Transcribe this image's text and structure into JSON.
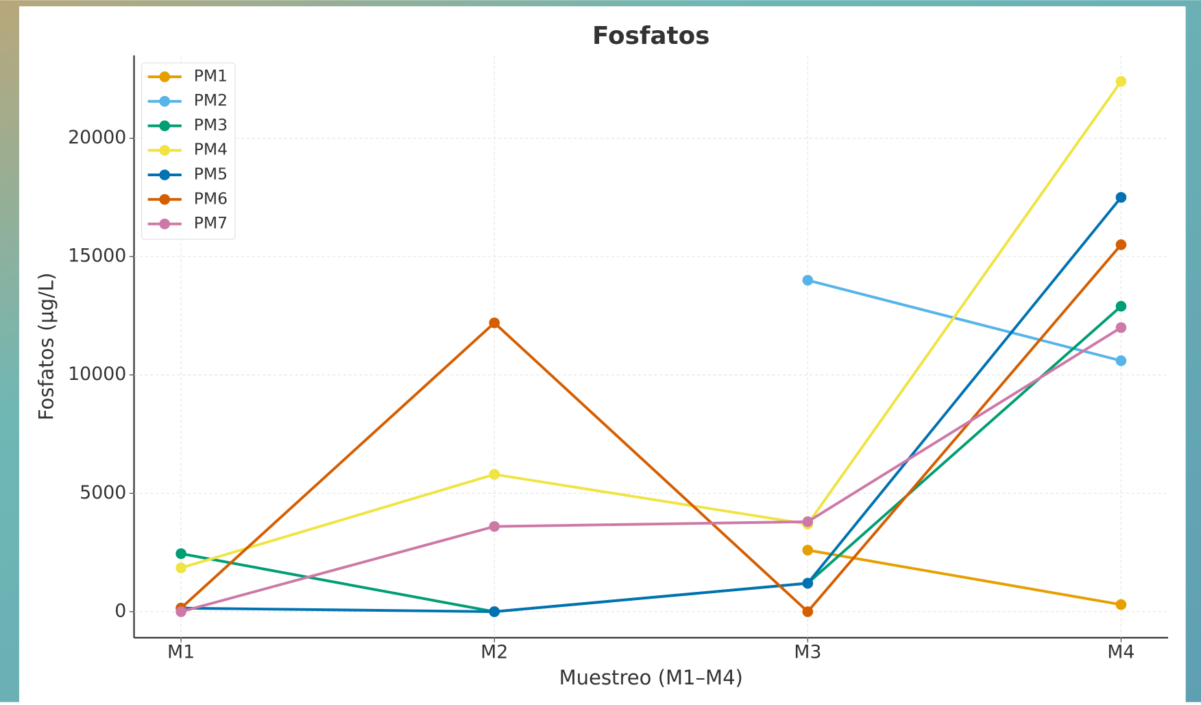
{
  "chart_data": {
    "type": "line",
    "title": "Fosfatos",
    "x_label": "Muestreo (M1–M4)",
    "y_label": "Fosfatos (µg/L)",
    "categories": [
      "M1",
      "M2",
      "M3",
      "M4"
    ],
    "series": [
      {
        "name": "PM1",
        "color": "#E69F00",
        "values": [
          null,
          null,
          2600,
          300
        ]
      },
      {
        "name": "PM2",
        "color": "#56B4E9",
        "values": [
          null,
          null,
          14000,
          10600
        ]
      },
      {
        "name": "PM3",
        "color": "#009E73",
        "values": [
          2450,
          0,
          1200,
          12900
        ]
      },
      {
        "name": "PM4",
        "color": "#F0E442",
        "values": [
          1850,
          5800,
          3700,
          22400
        ]
      },
      {
        "name": "PM5",
        "color": "#0072B2",
        "values": [
          150,
          0,
          1200,
          17500
        ]
      },
      {
        "name": "PM6",
        "color": "#D55E00",
        "values": [
          150,
          12200,
          0,
          15500
        ]
      },
      {
        "name": "PM7",
        "color": "#CC79A7",
        "values": [
          0,
          3600,
          3800,
          12000
        ]
      }
    ],
    "ylim": [
      -1100,
      23500
    ],
    "yticks": [
      0,
      5000,
      10000,
      15000,
      20000
    ],
    "grid": true,
    "legend": "upper left"
  }
}
